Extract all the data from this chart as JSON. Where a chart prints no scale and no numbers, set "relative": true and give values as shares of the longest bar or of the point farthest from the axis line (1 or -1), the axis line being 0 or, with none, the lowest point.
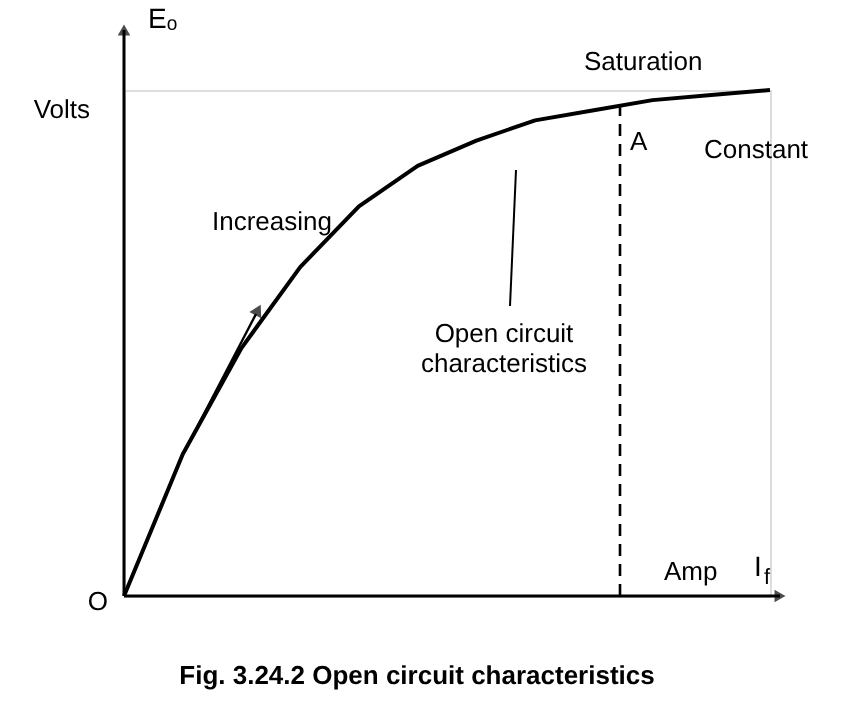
{
  "chart_data": {
    "type": "line",
    "title": "Fig. 3.24.2 Open circuit characteristics",
    "ylabel": "Eₒ",
    "xlabel": "I$_{f}$",
    "relative": true,
    "categories": [
      null,
      null,
      null,
      null,
      null,
      null,
      null,
      null,
      null,
      null,
      null,
      null
    ],
    "grid": false,
    "marker": "none",
    "line_style": "solid",
    "series": [
      {
        "color": "#000000",
        "values": [
          0,
          0.28,
          0.49,
          0.65,
          0.77,
          0.85,
          0.9,
          0.94,
          0.96,
          0.98,
          0.99,
          1.0
        ]
      }
    ],
    "annotations": [
      "Volts",
      "Increasing",
      "Saturation",
      "A",
      "Constant",
      "Open circuit characteristics",
      "O",
      "Amp"
    ]
  }
}
